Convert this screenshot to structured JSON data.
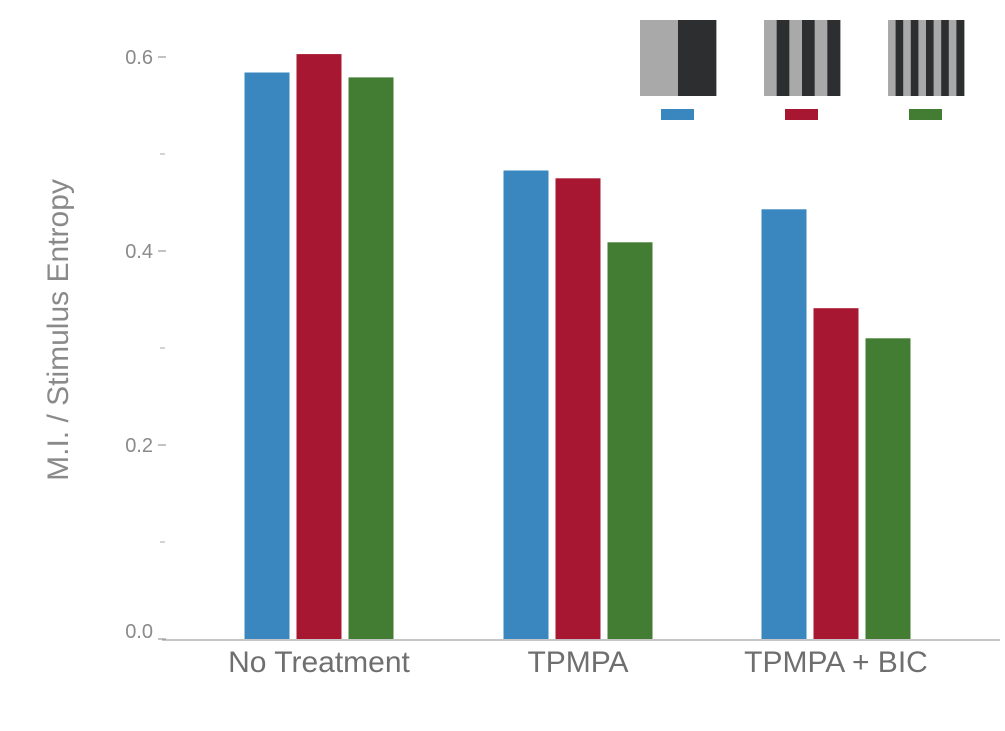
{
  "chart_data": {
    "type": "bar",
    "title": "",
    "xlabel": "",
    "ylabel": "M.I. / Stimulus Entropy",
    "categories": [
      "No Treatment",
      "TPMPA",
      "TPMPA + BIC"
    ],
    "series": [
      {
        "values": [
          0.584,
          0.483,
          0.443
        ],
        "color": "#3a87bf"
      },
      {
        "values": [
          0.603,
          0.475,
          0.341
        ],
        "color": "#a81731"
      },
      {
        "values": [
          0.579,
          0.409,
          0.31
        ],
        "color": "#437c33"
      }
    ],
    "ylim": [
      0.0,
      0.65
    ],
    "major_ticks": [
      0.0,
      0.2,
      0.4,
      0.6
    ],
    "major_tick_labels": [
      "0.0",
      "0.2",
      "0.4",
      "0.6"
    ],
    "minor_ticks": [
      0.1,
      0.3,
      0.5
    ],
    "grid": false,
    "legend": {
      "placement": "top-right",
      "entries": [
        {
          "grating": "coarse",
          "stripe_count": 2,
          "color": "#3a87bf"
        },
        {
          "grating": "medium",
          "stripe_count": 6,
          "color": "#a81731"
        },
        {
          "grating": "fine",
          "stripe_count": 10,
          "color": "#437c33"
        }
      ],
      "stripe_light": "#a9a9a9",
      "stripe_dark": "#2d2e30"
    }
  }
}
